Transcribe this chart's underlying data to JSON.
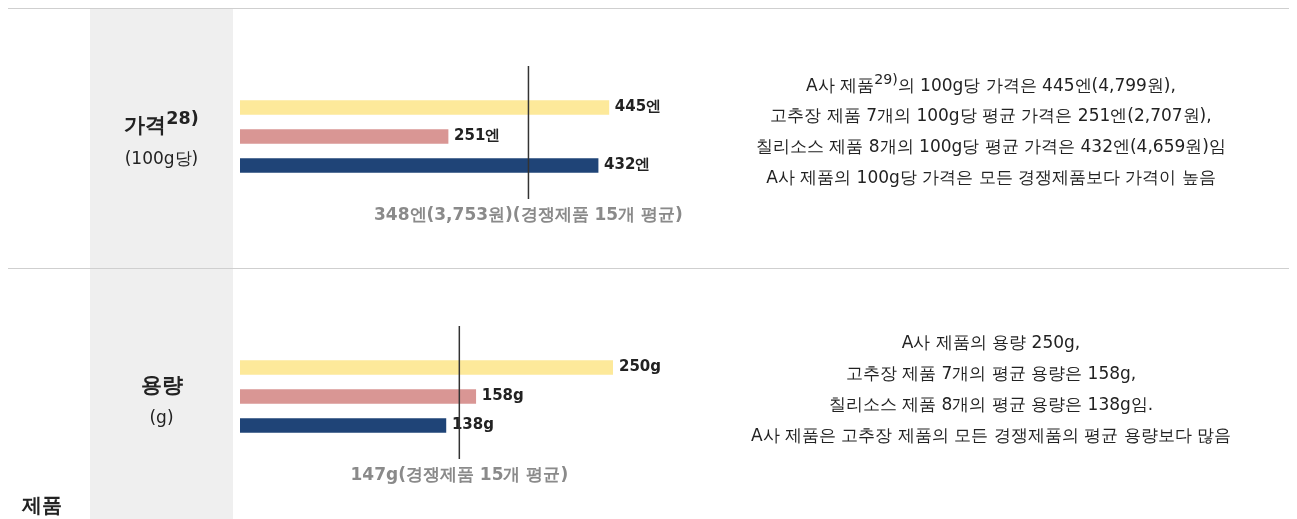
{
  "chart_data": [
    {
      "type": "bar",
      "orientation": "horizontal",
      "title": "가격$^{28)}$",
      "subtitle": "(100g당)",
      "categories": [
        null,
        null,
        null
      ],
      "values": [
        445,
        251,
        432
      ],
      "colors": [
        "#fde99a",
        "#d99694",
        "#1f4477"
      ],
      "value_labels": [
        "445엔",
        "251엔",
        "432엔"
      ],
      "tick_labels": false,
      "ref_lines": [
        {
          "axis": "x",
          "value": 348,
          "label": "348엔(3,753원)(경쟁제품 15개 평균)",
          "color": "#333333"
        }
      ],
      "annotations": [
        "A사 제품$^{29)}$의 100g당 가격은 445엔(4,799원),",
        "고추장 제품 7개의 100g당 평균 가격은 251엔(2,707원),",
        "칠리소스 제품 8개의 100g당 평균 가격은 432엔(4,659원)임",
        "A사 제품의 100g당 가격은 모든 경쟁제품보다 가격이 높음"
      ]
    },
    {
      "type": "bar",
      "orientation": "horizontal",
      "title": "용량",
      "subtitle": "(g)",
      "categories": [
        null,
        null,
        null
      ],
      "values": [
        250,
        158,
        138
      ],
      "colors": [
        "#fde99a",
        "#d99694",
        "#1f4477"
      ],
      "value_labels": [
        "250g",
        "158g",
        "138g"
      ],
      "tick_labels": false,
      "ref_lines": [
        {
          "axis": "x",
          "value": 147,
          "label": "147g(경쟁제품 15개 평균)",
          "color": "#333333"
        }
      ],
      "annotations": [
        "A사 제품의 용량 250g,",
        "고추장 제품 7개의 평균 용량은 158g,",
        "칠리소스 제품 8개의 평균 용량은 138g임.",
        "A사 제품은 고추장 제품의 모든 경쟁제품의 평균 용량보다 많음"
      ]
    },
    {
      "type": "other",
      "title": "제품"
    }
  ]
}
